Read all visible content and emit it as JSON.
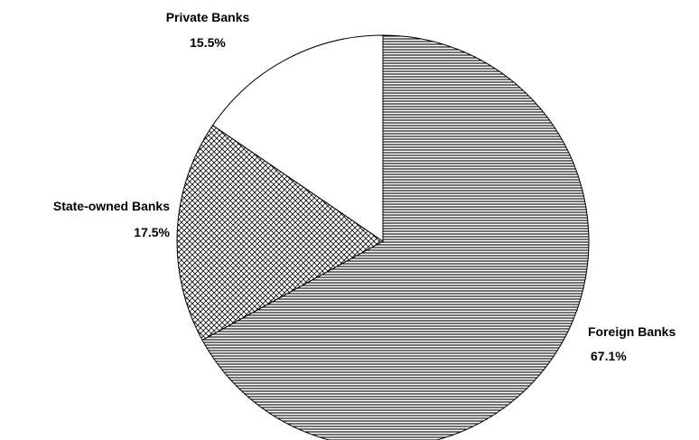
{
  "chart_data": {
    "type": "pie",
    "title": "",
    "slices": [
      {
        "label": "Foreign Banks",
        "value": 67.1,
        "value_label": "67.1%",
        "pattern": "horizontal-lines"
      },
      {
        "label": "State-owned Banks",
        "value": 17.5,
        "value_label": "17.5%",
        "pattern": "diamond-crosshatch"
      },
      {
        "label": "Private Banks",
        "value": 15.5,
        "value_label": "15.5%",
        "pattern": "solid-white"
      }
    ],
    "start_angle_deg": 0,
    "direction": "clockwise",
    "legend": "none",
    "label_placement": "outside"
  }
}
